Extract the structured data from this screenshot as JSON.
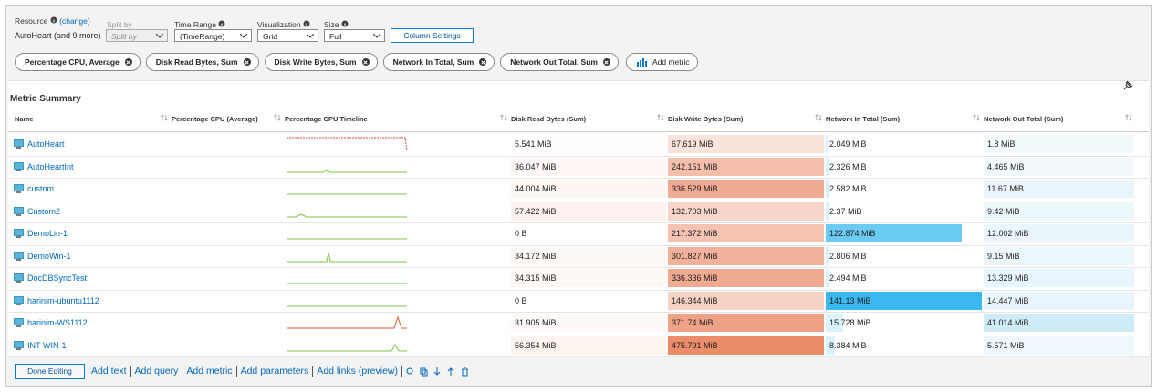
{
  "toolbar": {
    "resource_label": "Resource",
    "resource_change": "(change)",
    "resource_value": "AutoHeart (and 9 more)",
    "split_by_label": "Split by",
    "split_by_value": "Split by",
    "time_range_label": "Time Range",
    "time_range_value": "(TimeRange)",
    "visualization_label": "Visualization",
    "visualization_value": "Grid",
    "size_label": "Size",
    "size_value": "Full",
    "column_settings": "Column Settings"
  },
  "metrics": [
    "Percentage CPU, Average",
    "Disk Read Bytes, Sum",
    "Disk Write Bytes, Sum",
    "Network In Total, Sum",
    "Network Out Total, Sum"
  ],
  "add_metric": "Add metric",
  "section_title": "Metric Summary",
  "table": {
    "columns": [
      "Name",
      "Percentage CPU (Average)",
      "Percentage CPU Timeline",
      "Disk Read Bytes (Sum)",
      "Disk Write Bytes (Sum)",
      "Network In Total (Sum)",
      "Network Out Total (Sum)"
    ],
    "rows": [
      [
        "AutoHeart",
        "5.541 MiB",
        "67.619 MiB",
        "2.049 MiB",
        "1.8 MiB"
      ],
      [
        "AutoHeartInt",
        "36.047 MiB",
        "242.151 MiB",
        "2.326 MiB",
        "4.465 MiB"
      ],
      [
        "custom",
        "44.004 MiB",
        "336.529 MiB",
        "2.582 MiB",
        "11.67 MiB"
      ],
      [
        "Custom2",
        "57.422 MiB",
        "132.703 MiB",
        "2.37 MiB",
        "9.42 MiB"
      ],
      [
        "DemoLin-1",
        "0 B",
        "217.372 MiB",
        "122.874 MiB",
        "12.002 MiB"
      ],
      [
        "DemoWin-1",
        "34.172 MiB",
        "301.827 MiB",
        "2.806 MiB",
        "9.15 MiB"
      ],
      [
        "DocDBSyncTest",
        "34.315 MiB",
        "336.336 MiB",
        "2.494 MiB",
        "13.329 MiB"
      ],
      [
        "harinim-ubuntu1112",
        "0 B",
        "146.344 MiB",
        "141.13 MiB",
        "14.447 MiB"
      ],
      [
        "harinim-WS1112",
        "31.905 MiB",
        "371.74 MiB",
        "15.728 MiB",
        "41.014 MiB"
      ],
      [
        "INT-WIN-1",
        "56.354 MiB",
        "475.791 MiB",
        "8.384 MiB",
        "5.571 MiB"
      ]
    ]
  },
  "footer": {
    "done": "Done Editing",
    "links": [
      "Add text",
      "Add query",
      "Add metric",
      "Add parameters",
      "Add links (preview)"
    ]
  }
}
